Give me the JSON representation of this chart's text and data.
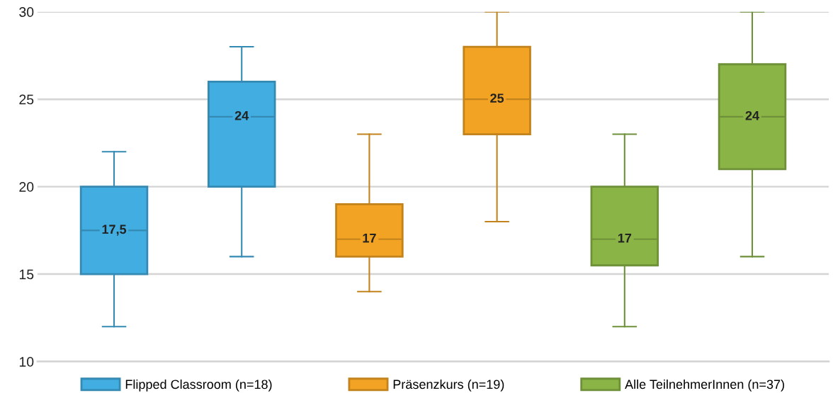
{
  "chart_data": {
    "type": "box",
    "categories": [
      null,
      null,
      null,
      null,
      null,
      null
    ],
    "series": [
      {
        "name": "Flipped Classroom (n=18)",
        "color": "#42ade0",
        "boxes": [
          {
            "low": 12,
            "q1": 15,
            "median": 17.5,
            "q3": 20,
            "high": 22
          },
          {
            "low": 16,
            "q1": 20,
            "median": 24,
            "q3": 26,
            "high": 28
          },
          null,
          null,
          null,
          null
        ]
      },
      {
        "name": "Präsenzkurs (n=19)",
        "color": "#f3a323",
        "boxes": [
          null,
          null,
          {
            "low": 14,
            "q1": 16,
            "median": 17,
            "q3": 19,
            "high": 23
          },
          {
            "low": 18,
            "q1": 23,
            "median": 25,
            "q3": 28,
            "high": 30
          },
          null,
          null
        ]
      },
      {
        "name": "Alle TeilnehmerInnen (n=37)",
        "color": "#8ab446",
        "boxes": [
          null,
          null,
          null,
          null,
          {
            "low": 12,
            "q1": 15.5,
            "median": 17,
            "q3": 20,
            "high": 23
          },
          {
            "low": 16,
            "q1": 21,
            "median": 24,
            "q3": 27,
            "high": 30
          }
        ]
      }
    ],
    "value_labels": [
      "17,5",
      "24",
      "17",
      "25",
      "17",
      "24"
    ],
    "ylim": [
      10,
      30
    ],
    "yticks": [
      10,
      15,
      20,
      25,
      30
    ],
    "grid": "y",
    "legend": "bottom"
  }
}
